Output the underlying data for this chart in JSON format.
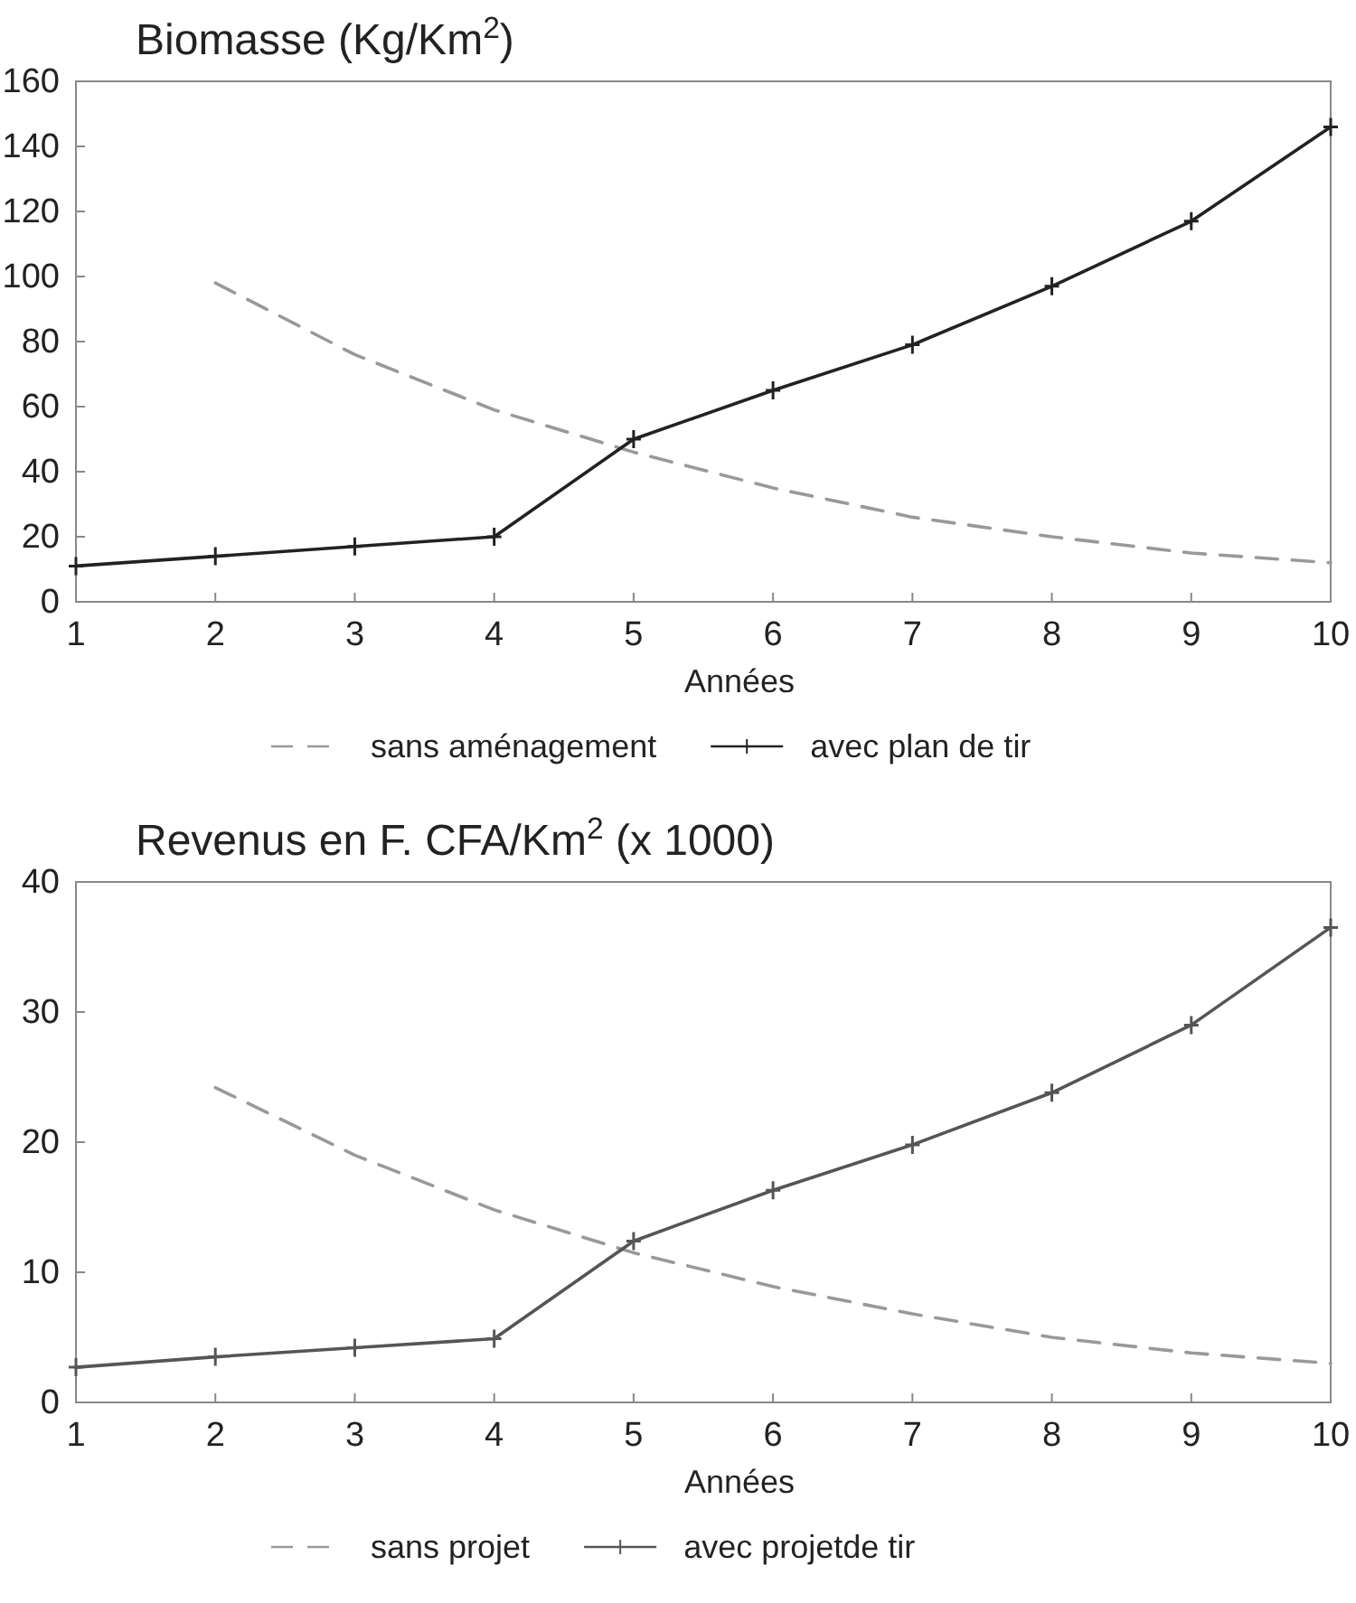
{
  "chart_data": [
    {
      "type": "line",
      "title": "Biomasse (Kg/Km$^{2}$)",
      "xlabel": "Années",
      "x": [
        1,
        2,
        3,
        4,
        5,
        6,
        7,
        8,
        9,
        10
      ],
      "xlim": [
        1,
        10
      ],
      "xticks": [
        1,
        2,
        3,
        4,
        5,
        6,
        7,
        8,
        9,
        10
      ],
      "ylim": [
        0,
        160
      ],
      "yticks": [
        0,
        20,
        40,
        60,
        80,
        100,
        120,
        140,
        160
      ],
      "grid": false,
      "legend": "bottom",
      "series": [
        {
          "name": "sans aménagement",
          "color": "#999999",
          "line_style": "dashed",
          "marker": "none",
          "values": [
            null,
            98,
            76,
            59,
            46,
            35,
            26,
            20,
            15,
            12
          ]
        },
        {
          "name": "avec plan de tir",
          "color": "#222222",
          "line_style": "solid",
          "marker": "cross",
          "values": [
            11,
            14,
            17,
            20,
            50,
            65,
            79,
            97,
            117,
            146
          ]
        }
      ]
    },
    {
      "type": "line",
      "title": "Revenus en F. CFA/Km$^{2}$ (x 1000)",
      "xlabel": "Années",
      "x": [
        1,
        2,
        3,
        4,
        5,
        6,
        7,
        8,
        9,
        10
      ],
      "xlim": [
        1,
        10
      ],
      "xticks": [
        1,
        2,
        3,
        4,
        5,
        6,
        7,
        8,
        9,
        10
      ],
      "ylim": [
        0,
        40
      ],
      "yticks": [
        0,
        10,
        20,
        30,
        40
      ],
      "grid": false,
      "legend": "bottom",
      "series": [
        {
          "name": "sans projet",
          "color": "#999999",
          "line_style": "dashed",
          "marker": "none",
          "values": [
            null,
            24.2,
            19,
            14.8,
            11.5,
            8.9,
            6.8,
            5,
            3.8,
            3
          ]
        },
        {
          "name": "avec projetde tir",
          "color": "#555555",
          "line_style": "solid",
          "marker": "cross",
          "values": [
            2.7,
            3.5,
            4.2,
            4.9,
            12.4,
            16.3,
            19.8,
            23.8,
            29,
            36.5
          ]
        }
      ]
    }
  ]
}
